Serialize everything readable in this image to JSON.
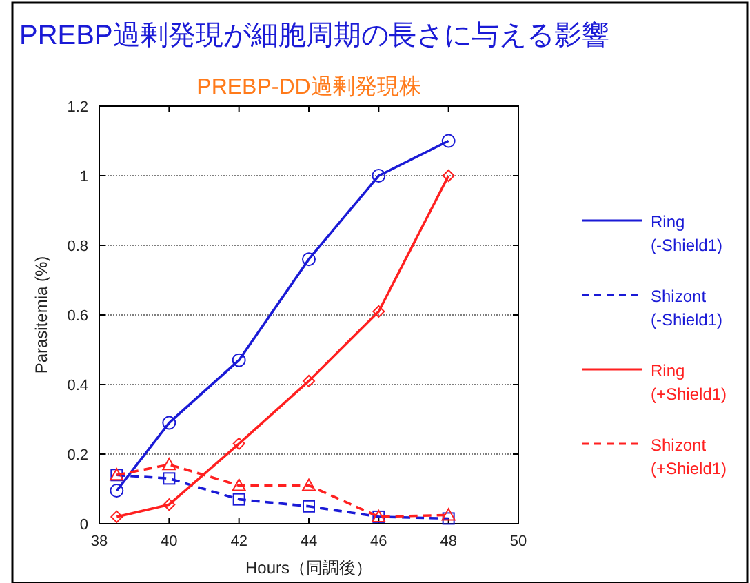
{
  "chart_data": {
    "type": "line",
    "title": "PREBP過剰発現が細胞周期の長さに与える影響",
    "subtitle": "PREBP-DD過剰発現株",
    "xlabel": "Hours（同調後）",
    "ylabel": "Parasitemia (%)",
    "x": [
      38.5,
      40,
      42,
      44,
      46,
      48
    ],
    "series": [
      {
        "name": "Ring (-Shield1)",
        "color": "#1a1ad6",
        "marker": "circle",
        "line_style": "solid",
        "values": [
          0.095,
          0.29,
          0.47,
          0.76,
          1.0,
          1.1
        ]
      },
      {
        "name": "Shizont (-Shield1)",
        "color": "#1a1ad6",
        "marker": "square",
        "line_style": "dashed",
        "values": [
          0.14,
          0.13,
          0.07,
          0.05,
          0.02,
          0.015
        ]
      },
      {
        "name": "Ring (+Shield1)",
        "color": "#ff2020",
        "marker": "diamond",
        "line_style": "solid",
        "values": [
          0.02,
          0.055,
          0.23,
          0.41,
          0.61,
          1.0
        ]
      },
      {
        "name": "Shizont (+Shield1)",
        "color": "#ff2020",
        "marker": "triangle",
        "line_style": "dashed",
        "values": [
          0.14,
          0.17,
          0.11,
          0.11,
          0.02,
          0.025
        ]
      }
    ],
    "xlim": [
      38,
      50
    ],
    "xticks": [
      38,
      40,
      42,
      44,
      46,
      48,
      50
    ],
    "ylim": [
      0,
      1.2
    ],
    "yticks": [
      0,
      0.2,
      0.4,
      0.6,
      0.8,
      1,
      1.2
    ],
    "grid": "y",
    "legend": "right"
  }
}
